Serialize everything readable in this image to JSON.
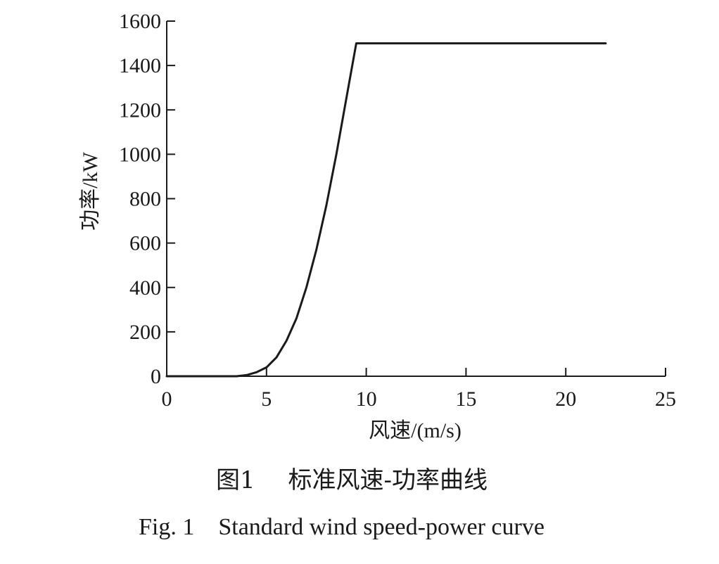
{
  "chart_data": {
    "type": "line",
    "xlabel": "风速/(m/s)",
    "ylabel": "功率/kW",
    "xlim": [
      0,
      25
    ],
    "ylim": [
      0,
      1600
    ],
    "x_ticks": [
      0,
      5,
      10,
      15,
      20,
      25
    ],
    "y_ticks": [
      0,
      200,
      400,
      600,
      800,
      1000,
      1200,
      1400,
      1600
    ],
    "grid": false,
    "legend": "none",
    "series": [
      {
        "color": "#1a1a1a",
        "x": [
          0,
          3.5,
          4.0,
          4.5,
          5.0,
          5.5,
          6.0,
          6.5,
          7.0,
          7.5,
          8.0,
          8.5,
          9.0,
          9.5,
          12,
          15,
          18,
          22
        ],
        "y": [
          0,
          0,
          5,
          18,
          40,
          85,
          160,
          260,
          400,
          570,
          770,
          1000,
          1250,
          1500,
          1500,
          1500,
          1500,
          1500
        ]
      }
    ]
  },
  "caption": {
    "cn_figure": "图1",
    "cn_title": "标准风速-功率曲线",
    "en": "Fig. 1    Standard wind speed-power curve"
  }
}
